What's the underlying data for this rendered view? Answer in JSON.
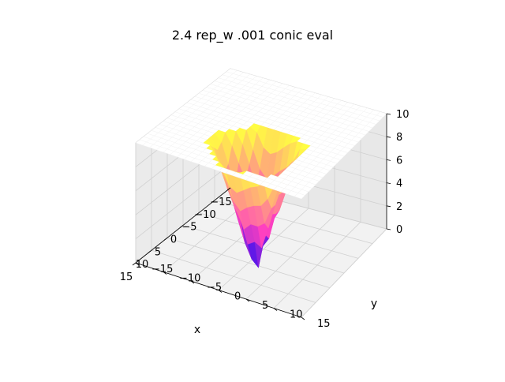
{
  "chart_data": {
    "type": "surface3d",
    "title": "2.4 rep_w .001 conic eval",
    "xlabel": "x",
    "ylabel": "y",
    "zlabel": "",
    "xlim": [
      -15,
      15
    ],
    "ylim": [
      -15,
      15
    ],
    "zlim": [
      0,
      10
    ],
    "x_ticks": [
      "−15",
      "−10",
      "−5",
      "0",
      "5",
      "10",
      "15"
    ],
    "y_ticks": [
      "−15",
      "−10",
      "−5",
      "0",
      "5",
      "10",
      "15"
    ],
    "z_ticks": [
      "0",
      "2",
      "4",
      "6",
      "8",
      "10"
    ],
    "grid": true,
    "colormap": "spring-to-blue",
    "colors": {
      "low": "#0000ff",
      "mid": "#ff40c0",
      "high": "#ffff40",
      "clip": "#ffffff"
    },
    "surface": {
      "shape": "conic well clipped at z=10",
      "center": [
        6,
        2
      ],
      "min_z": 0,
      "clip_z": 10,
      "radius_at_clip": 7
    }
  }
}
